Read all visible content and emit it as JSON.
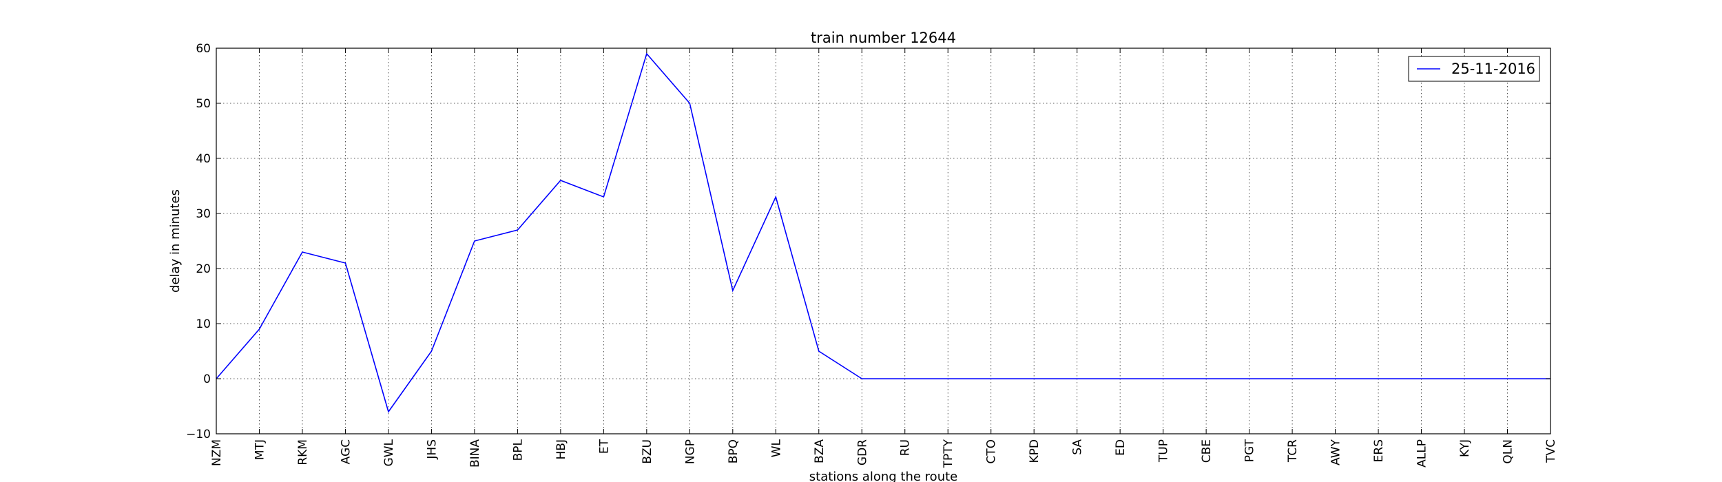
{
  "chart_data": {
    "type": "line",
    "title": "train number 12644",
    "xlabel": "stations along the route",
    "ylabel": "delay in minutes",
    "categories": [
      "NZM",
      "MTJ",
      "RKM",
      "AGC",
      "GWL",
      "JHS",
      "BINA",
      "BPL",
      "HBJ",
      "ET",
      "BZU",
      "NGP",
      "BPQ",
      "WL",
      "BZA",
      "GDR",
      "RU",
      "TPTY",
      "CTO",
      "KPD",
      "SA",
      "ED",
      "TUP",
      "CBE",
      "PGT",
      "TCR",
      "AWY",
      "ERS",
      "ALLP",
      "KYJ",
      "QLN",
      "TVC"
    ],
    "series": [
      {
        "name": "25-11-2016",
        "color": "#0000ff",
        "values": [
          0,
          9,
          23,
          21,
          -6,
          5,
          25,
          27,
          36,
          33,
          59,
          50,
          16,
          33,
          5,
          0,
          0,
          0,
          0,
          0,
          0,
          0,
          0,
          0,
          0,
          0,
          0,
          0,
          0,
          0,
          0,
          0
        ]
      }
    ],
    "ylim": [
      -10,
      60
    ],
    "yticks": [
      -10,
      0,
      10,
      20,
      30,
      40,
      50,
      60
    ],
    "grid": true,
    "legend_position": "top-right"
  }
}
